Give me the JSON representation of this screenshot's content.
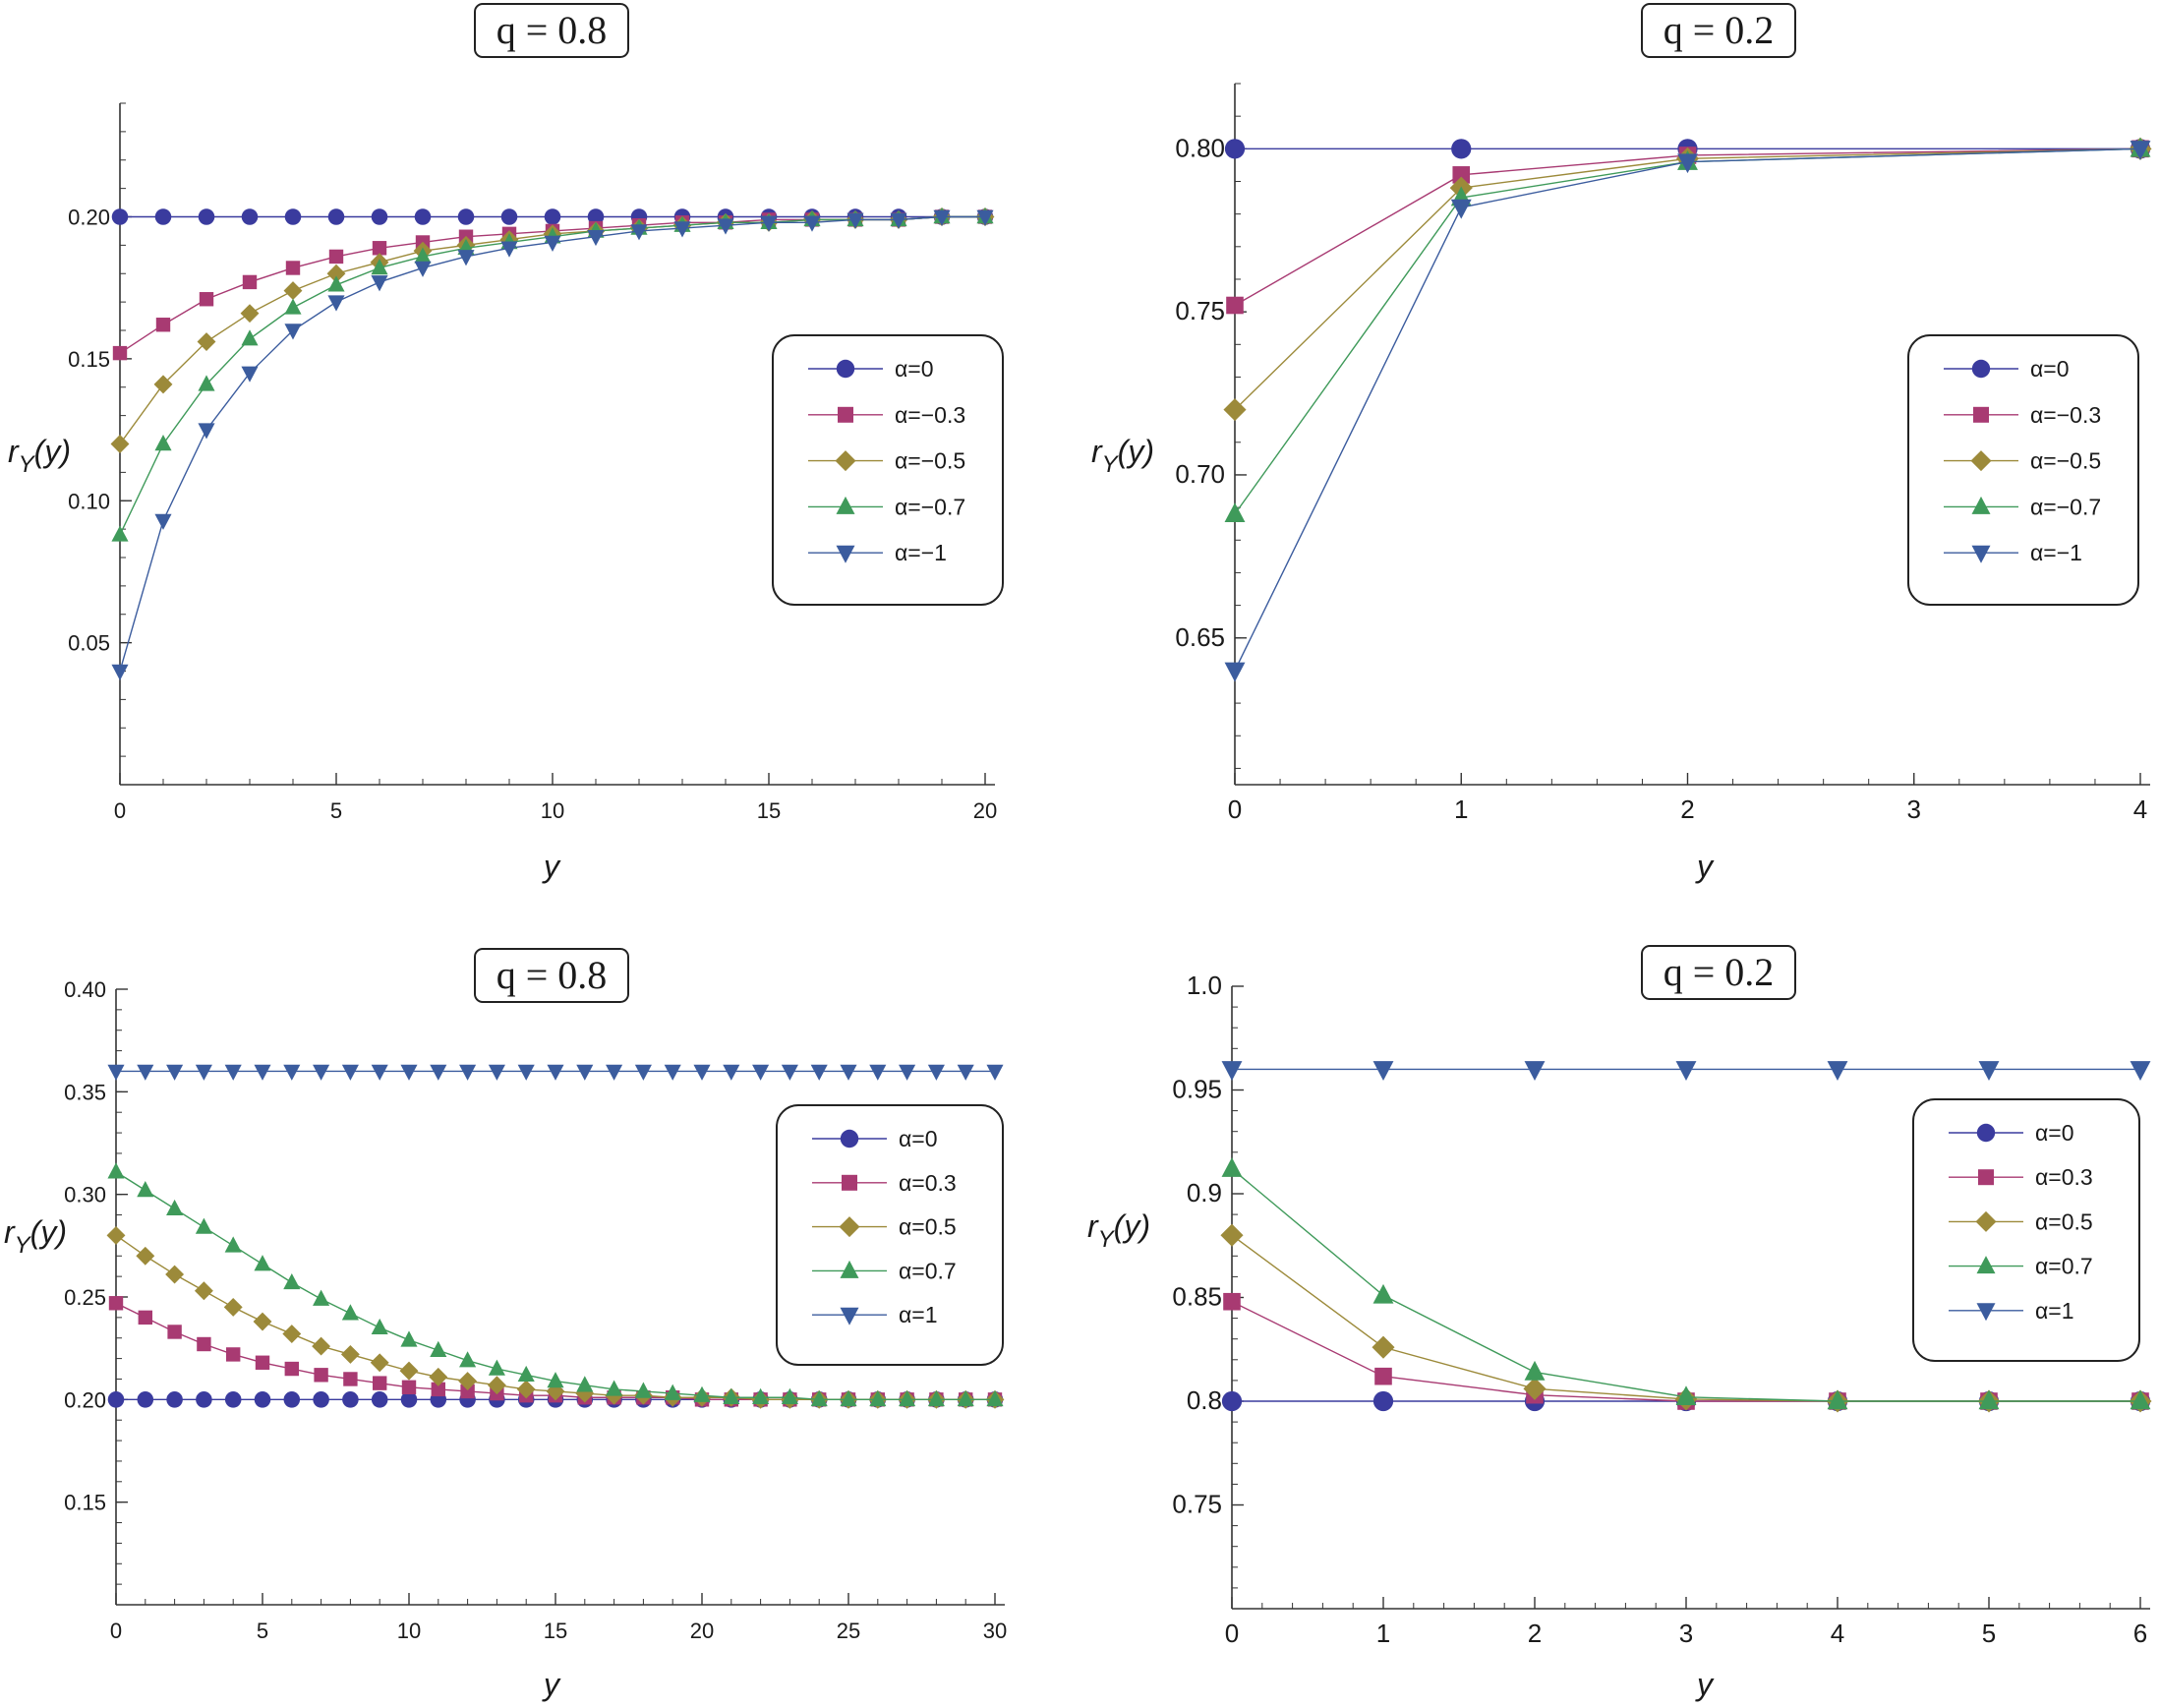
{
  "colors": {
    "alpha0": "#3a3b9e",
    "alpha3": "#a83a72",
    "alpha5": "#9c8a3a",
    "alpha7": "#3f9a5a",
    "alpha10": "#3b5c9e",
    "axis": "#333333"
  },
  "chart_data": [
    {
      "type": "line",
      "title": "q = 0.8",
      "xlabel": "y",
      "ylabel": "r_Y(y)",
      "xlim": [
        0,
        20
      ],
      "ylim": [
        0,
        0.24
      ],
      "xticks": [
        0,
        5,
        10,
        15,
        20
      ],
      "xtick_labels": [
        "0",
        "5",
        "10",
        "15",
        "20"
      ],
      "yticks": [
        0.05,
        0.1,
        0.15,
        0.2
      ],
      "ytick_labels": [
        "0.05",
        "0.10",
        "0.15",
        "0.20"
      ],
      "x": [
        0,
        1,
        2,
        3,
        4,
        5,
        6,
        7,
        8,
        9,
        10,
        11,
        12,
        13,
        14,
        15,
        16,
        17,
        18,
        19,
        20
      ],
      "legend_position": "right",
      "series": [
        {
          "name": "α=0",
          "marker": "circle",
          "color": "#3a3b9e",
          "values": [
            0.2,
            0.2,
            0.2,
            0.2,
            0.2,
            0.2,
            0.2,
            0.2,
            0.2,
            0.2,
            0.2,
            0.2,
            0.2,
            0.2,
            0.2,
            0.2,
            0.2,
            0.2,
            0.2,
            0.2,
            0.2
          ]
        },
        {
          "name": "α=−0.3",
          "marker": "square",
          "color": "#a83a72",
          "values": [
            0.152,
            0.162,
            0.171,
            0.177,
            0.182,
            0.186,
            0.189,
            0.191,
            0.193,
            0.194,
            0.195,
            0.196,
            0.197,
            0.198,
            0.198,
            0.199,
            0.199,
            0.199,
            0.199,
            0.2,
            0.2
          ]
        },
        {
          "name": "α=−0.5",
          "marker": "diamond",
          "color": "#9c8a3a",
          "values": [
            0.12,
            0.141,
            0.156,
            0.166,
            0.174,
            0.18,
            0.184,
            0.188,
            0.19,
            0.192,
            0.194,
            0.195,
            0.196,
            0.197,
            0.198,
            0.198,
            0.199,
            0.199,
            0.199,
            0.2,
            0.2
          ]
        },
        {
          "name": "α=−0.7",
          "marker": "triangle-up",
          "color": "#3f9a5a",
          "values": [
            0.088,
            0.12,
            0.141,
            0.157,
            0.168,
            0.176,
            0.182,
            0.186,
            0.189,
            0.191,
            0.193,
            0.195,
            0.196,
            0.197,
            0.198,
            0.198,
            0.199,
            0.199,
            0.199,
            0.2,
            0.2
          ]
        },
        {
          "name": "α=−1",
          "marker": "triangle-down",
          "color": "#3b5c9e",
          "values": [
            0.04,
            0.093,
            0.125,
            0.145,
            0.16,
            0.17,
            0.177,
            0.182,
            0.186,
            0.189,
            0.191,
            0.193,
            0.195,
            0.196,
            0.197,
            0.198,
            0.198,
            0.199,
            0.199,
            0.2,
            0.2
          ]
        }
      ]
    },
    {
      "type": "line",
      "title": "q = 0.2",
      "xlabel": "y",
      "ylabel": "r_Y(y)",
      "xlim": [
        0,
        4
      ],
      "ylim": [
        0.605,
        0.82
      ],
      "xticks": [
        0,
        1,
        2,
        3,
        4
      ],
      "xtick_labels": [
        "0",
        "1",
        "2",
        "3",
        "4"
      ],
      "yticks": [
        0.65,
        0.7,
        0.75,
        0.8
      ],
      "ytick_labels": [
        "0.65",
        "0.70",
        "0.75",
        "0.80"
      ],
      "x": [
        0,
        1,
        2,
        4
      ],
      "legend_position": "right",
      "series": [
        {
          "name": "α=0",
          "marker": "circle",
          "color": "#3a3b9e",
          "values": [
            0.8,
            0.8,
            0.8,
            0.8
          ]
        },
        {
          "name": "α=−0.3",
          "marker": "square",
          "color": "#a83a72",
          "values": [
            0.752,
            0.792,
            0.798,
            0.8
          ]
        },
        {
          "name": "α=−0.5",
          "marker": "diamond",
          "color": "#9c8a3a",
          "values": [
            0.72,
            0.788,
            0.797,
            0.8
          ]
        },
        {
          "name": "α=−0.7",
          "marker": "triangle-up",
          "color": "#3f9a5a",
          "values": [
            0.688,
            0.785,
            0.796,
            0.8
          ]
        },
        {
          "name": "α=−1",
          "marker": "triangle-down",
          "color": "#3b5c9e",
          "values": [
            0.64,
            0.782,
            0.796,
            0.8
          ]
        }
      ]
    },
    {
      "type": "line",
      "title": "q = 0.8",
      "xlabel": "y",
      "ylabel": "r_Y(y)",
      "xlim": [
        0,
        30
      ],
      "ylim": [
        0.1,
        0.4
      ],
      "xticks": [
        0,
        5,
        10,
        15,
        20,
        25,
        30
      ],
      "xtick_labels": [
        "0",
        "5",
        "10",
        "15",
        "20",
        "25",
        "30"
      ],
      "yticks": [
        0.15,
        0.2,
        0.25,
        0.3,
        0.35,
        0.4
      ],
      "ytick_labels": [
        "0.15",
        "0.20",
        "0.25",
        "0.30",
        "0.35",
        "0.40"
      ],
      "x": [
        0,
        1,
        2,
        3,
        4,
        5,
        6,
        7,
        8,
        9,
        10,
        11,
        12,
        13,
        14,
        15,
        16,
        17,
        18,
        19,
        20,
        21,
        22,
        23,
        24,
        25,
        26,
        27,
        28,
        29,
        30
      ],
      "legend_position": "right",
      "series": [
        {
          "name": "α=0",
          "marker": "circle",
          "color": "#3a3b9e",
          "values": [
            0.2,
            0.2,
            0.2,
            0.2,
            0.2,
            0.2,
            0.2,
            0.2,
            0.2,
            0.2,
            0.2,
            0.2,
            0.2,
            0.2,
            0.2,
            0.2,
            0.2,
            0.2,
            0.2,
            0.2,
            0.2,
            0.2,
            0.2,
            0.2,
            0.2,
            0.2,
            0.2,
            0.2,
            0.2,
            0.2,
            0.2
          ]
        },
        {
          "name": "α=0.3",
          "marker": "square",
          "color": "#a83a72",
          "values": [
            0.247,
            0.24,
            0.233,
            0.227,
            0.222,
            0.218,
            0.215,
            0.212,
            0.21,
            0.208,
            0.206,
            0.205,
            0.204,
            0.203,
            0.202,
            0.202,
            0.201,
            0.201,
            0.201,
            0.201,
            0.2,
            0.2,
            0.2,
            0.2,
            0.2,
            0.2,
            0.2,
            0.2,
            0.2,
            0.2,
            0.2
          ]
        },
        {
          "name": "α=0.5",
          "marker": "diamond",
          "color": "#9c8a3a",
          "values": [
            0.28,
            0.27,
            0.261,
            0.253,
            0.245,
            0.238,
            0.232,
            0.226,
            0.222,
            0.218,
            0.214,
            0.211,
            0.209,
            0.207,
            0.205,
            0.204,
            0.203,
            0.202,
            0.202,
            0.201,
            0.201,
            0.201,
            0.2,
            0.2,
            0.2,
            0.2,
            0.2,
            0.2,
            0.2,
            0.2,
            0.2
          ]
        },
        {
          "name": "α=0.7",
          "marker": "triangle-up",
          "color": "#3f9a5a",
          "values": [
            0.311,
            0.302,
            0.293,
            0.284,
            0.275,
            0.266,
            0.257,
            0.249,
            0.242,
            0.235,
            0.229,
            0.224,
            0.219,
            0.215,
            0.212,
            0.209,
            0.207,
            0.205,
            0.204,
            0.203,
            0.202,
            0.201,
            0.201,
            0.201,
            0.2,
            0.2,
            0.2,
            0.2,
            0.2,
            0.2,
            0.2
          ]
        },
        {
          "name": "α=1",
          "marker": "triangle-down",
          "color": "#3b5c9e",
          "values": [
            0.36,
            0.36,
            0.36,
            0.36,
            0.36,
            0.36,
            0.36,
            0.36,
            0.36,
            0.36,
            0.36,
            0.36,
            0.36,
            0.36,
            0.36,
            0.36,
            0.36,
            0.36,
            0.36,
            0.36,
            0.36,
            0.36,
            0.36,
            0.36,
            0.36,
            0.36,
            0.36,
            0.36,
            0.36,
            0.36,
            0.36
          ]
        }
      ]
    },
    {
      "type": "line",
      "title": "q = 0.2",
      "xlabel": "y",
      "ylabel": "r_Y(y)",
      "xlim": [
        0,
        6
      ],
      "ylim": [
        0.7,
        1.0
      ],
      "xticks": [
        0,
        1,
        2,
        3,
        4,
        5,
        6
      ],
      "xtick_labels": [
        "0",
        "1",
        "2",
        "3",
        "4",
        "5",
        "6"
      ],
      "yticks": [
        0.75,
        0.8,
        0.85,
        0.9,
        0.95,
        1.0
      ],
      "ytick_labels": [
        "0.75",
        "0.8",
        "0.85",
        "0.9",
        "0.95",
        "1.0"
      ],
      "x": [
        0,
        1,
        2,
        3,
        4,
        5,
        6
      ],
      "legend_position": "right",
      "series": [
        {
          "name": "α=0",
          "marker": "circle",
          "color": "#3a3b9e",
          "values": [
            0.8,
            0.8,
            0.8,
            0.8,
            0.8,
            0.8,
            0.8
          ]
        },
        {
          "name": "α=0.3",
          "marker": "square",
          "color": "#a83a72",
          "values": [
            0.848,
            0.812,
            0.803,
            0.8,
            0.8,
            0.8,
            0.8
          ]
        },
        {
          "name": "α=0.5",
          "marker": "diamond",
          "color": "#9c8a3a",
          "values": [
            0.88,
            0.826,
            0.806,
            0.801,
            0.8,
            0.8,
            0.8
          ]
        },
        {
          "name": "α=0.7",
          "marker": "triangle-up",
          "color": "#3f9a5a",
          "values": [
            0.912,
            0.851,
            0.814,
            0.802,
            0.8,
            0.8,
            0.8
          ]
        },
        {
          "name": "α=1",
          "marker": "triangle-down",
          "color": "#3b5c9e",
          "values": [
            0.96,
            0.96,
            0.96,
            0.96,
            0.96,
            0.96,
            0.96
          ]
        }
      ]
    }
  ]
}
